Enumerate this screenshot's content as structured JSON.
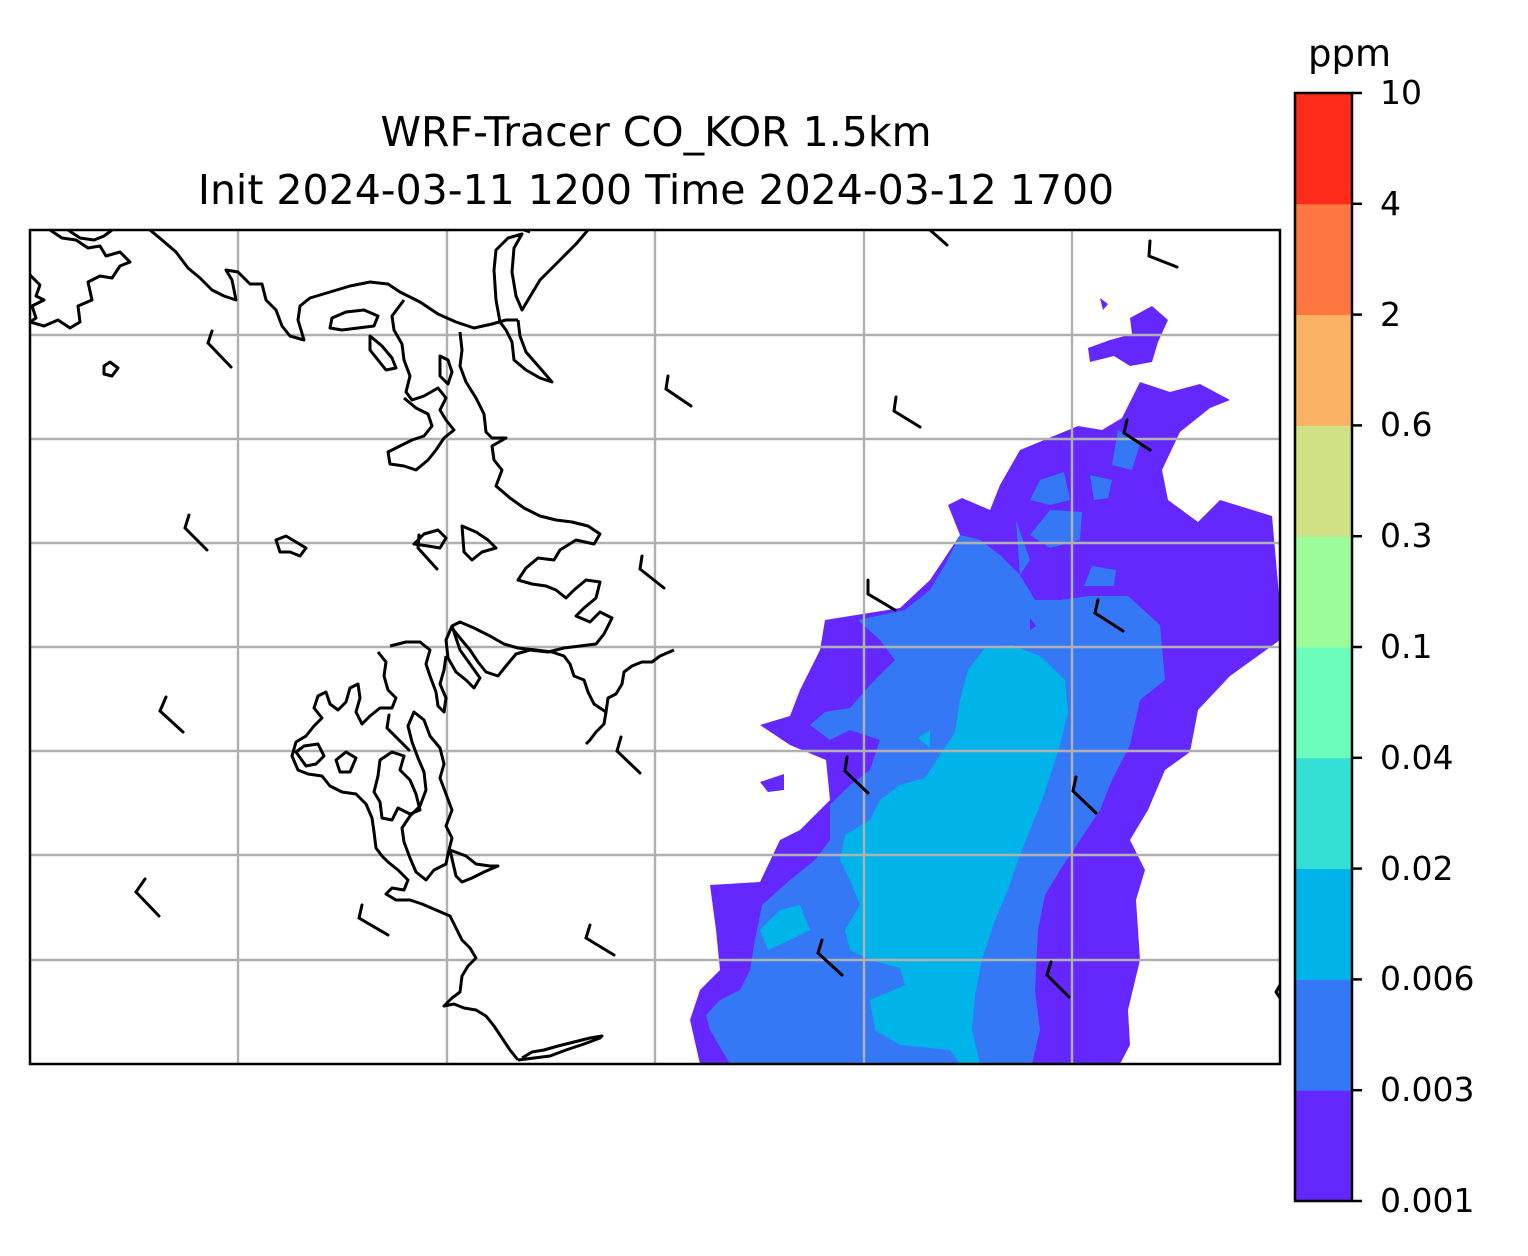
{
  "title": {
    "line1": "WRF-Tracer CO_KOR 1.5km",
    "line2": "Init 2024-03-11 1200 Time 2024-03-12 1700"
  },
  "colorbar": {
    "unit": "ppm",
    "levels": [
      "0.001",
      "0.003",
      "0.006",
      "0.02",
      "0.04",
      "0.1",
      "0.3",
      "0.6",
      "2",
      "4",
      "10"
    ],
    "colors": [
      "#6428fe",
      "#3478f6",
      "#00b4ea",
      "#34e0d4",
      "#6cfcbc",
      "#9cfc9c",
      "#d0e084",
      "#fcb264",
      "#fe7640",
      "#fe2a1a"
    ]
  },
  "map": {
    "gridlines": true,
    "coastline_color": "#000000",
    "gridline_color": "#b0b0b0",
    "layers": [
      "CO tracer concentration filled contours",
      "coastlines",
      "wind barbs"
    ]
  }
}
